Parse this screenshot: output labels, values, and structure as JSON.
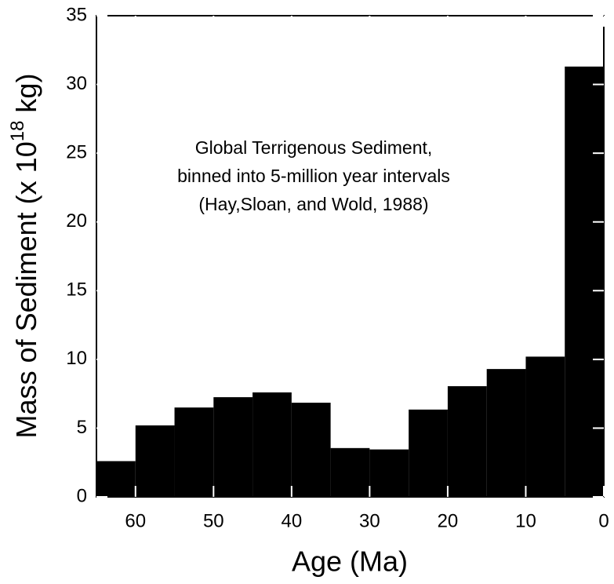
{
  "chart_data": {
    "type": "histogram",
    "annotation": [
      "Global Terrigenous Sediment,",
      "binned into 5-million year intervals",
      "(Hay,Sloan, and Wold, 1988)"
    ],
    "xlabel": "Age (Ma)",
    "ylabel": [
      "Mass of Sediment (x 10",
      "18",
      "kg)"
    ],
    "bins": [
      65,
      60,
      55,
      50,
      45,
      40,
      35,
      30,
      25,
      20,
      15,
      10,
      5,
      0
    ],
    "values": [
      2.6,
      5.2,
      6.5,
      7.25,
      7.6,
      6.85,
      3.55,
      3.45,
      6.35,
      8.05,
      9.3,
      10.2,
      31.3
    ],
    "color": "#000000",
    "xlim": [
      65,
      0
    ],
    "xticks": [
      60,
      50,
      40,
      30,
      20,
      10,
      0
    ],
    "ylim": [
      0,
      35
    ],
    "yticks": [
      0,
      5,
      10,
      15,
      20,
      25,
      30,
      35
    ]
  }
}
